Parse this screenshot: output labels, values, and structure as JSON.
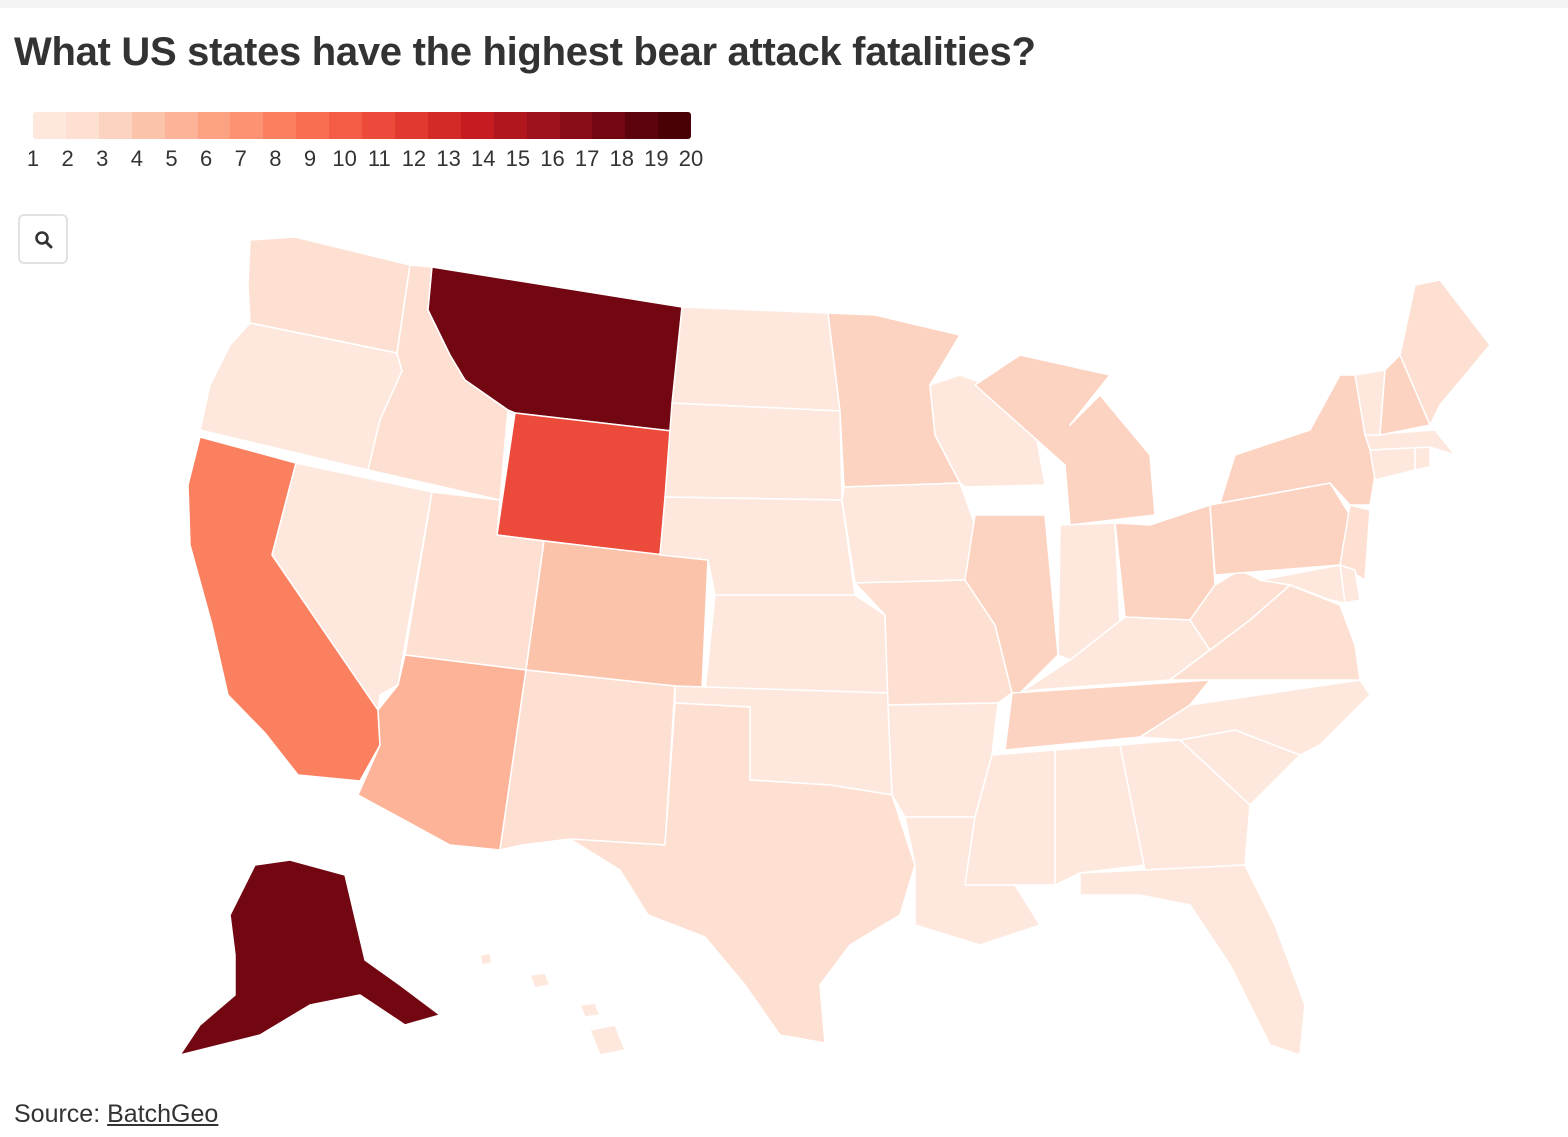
{
  "title": "What US states have the highest bear attack fatalities?",
  "legend": {
    "labels": [
      "1",
      "2",
      "3",
      "4",
      "5",
      "6",
      "7",
      "8",
      "9",
      "10",
      "11",
      "12",
      "13",
      "14",
      "15",
      "16",
      "17",
      "18",
      "19",
      "20"
    ],
    "colors": [
      "#fee8de",
      "#fde0d2",
      "#fcd2c0",
      "#fcc3ab",
      "#fcb397",
      "#fca283",
      "#fc9271",
      "#fb8060",
      "#f96e51",
      "#f45c45",
      "#ec4a3a",
      "#e23830",
      "#d42a27",
      "#c61b20",
      "#b1151d",
      "#9c111b",
      "#880c17",
      "#720712",
      "#5d030d",
      "#4a0007"
    ]
  },
  "search_icon": "magnifier-icon",
  "source": {
    "prefix": "Source:",
    "link": "BatchGeo"
  },
  "map_data": [
    {
      "state": "Montana",
      "value": 18
    },
    {
      "state": "Alaska",
      "value": 18
    },
    {
      "state": "Wyoming",
      "value": 11
    },
    {
      "state": "California",
      "value": 8
    },
    {
      "state": "Arizona",
      "value": 5
    },
    {
      "state": "Colorado",
      "value": 4
    },
    {
      "state": "Washington",
      "value": 2
    },
    {
      "state": "Idaho",
      "value": 2
    },
    {
      "state": "Utah",
      "value": 2
    },
    {
      "state": "New Mexico",
      "value": 2
    },
    {
      "state": "Texas",
      "value": 2
    },
    {
      "state": "Minnesota",
      "value": 3
    },
    {
      "state": "Michigan",
      "value": 3
    },
    {
      "state": "Illinois",
      "value": 3
    },
    {
      "state": "Ohio",
      "value": 3
    },
    {
      "state": "Pennsylvania",
      "value": 3
    },
    {
      "state": "New York",
      "value": 3
    },
    {
      "state": "Tennessee",
      "value": 3
    },
    {
      "state": "New Hampshire",
      "value": 3
    },
    {
      "state": "Maine",
      "value": 2
    },
    {
      "state": "Missouri",
      "value": 2
    },
    {
      "state": "Oklahoma",
      "value": 1
    },
    {
      "state": "Kansas",
      "value": 1
    },
    {
      "state": "Nebraska",
      "value": 1
    },
    {
      "state": "Oregon",
      "value": 1
    },
    {
      "state": "Nevada",
      "value": 1
    },
    {
      "state": "North Dakota",
      "value": 1
    },
    {
      "state": "South Dakota",
      "value": 1
    },
    {
      "state": "Iowa",
      "value": 1
    },
    {
      "state": "Wisconsin",
      "value": 1
    },
    {
      "state": "Indiana",
      "value": 1
    },
    {
      "state": "Kentucky",
      "value": 1
    },
    {
      "state": "West Virginia",
      "value": 2
    },
    {
      "state": "Virginia",
      "value": 2
    },
    {
      "state": "North Carolina",
      "value": 1
    },
    {
      "state": "South Carolina",
      "value": 1
    },
    {
      "state": "Georgia",
      "value": 1
    },
    {
      "state": "Florida",
      "value": 1
    },
    {
      "state": "Alabama",
      "value": 1
    },
    {
      "state": "Mississippi",
      "value": 1
    },
    {
      "state": "Louisiana",
      "value": 1
    },
    {
      "state": "Arkansas",
      "value": 1
    },
    {
      "state": "Vermont",
      "value": 1
    },
    {
      "state": "Massachusetts",
      "value": 1
    },
    {
      "state": "Connecticut",
      "value": 1
    },
    {
      "state": "Rhode Island",
      "value": 1
    },
    {
      "state": "New Jersey",
      "value": 2
    },
    {
      "state": "Delaware",
      "value": 1
    },
    {
      "state": "Maryland",
      "value": 1
    },
    {
      "state": "Hawaii",
      "value": 1
    }
  ]
}
